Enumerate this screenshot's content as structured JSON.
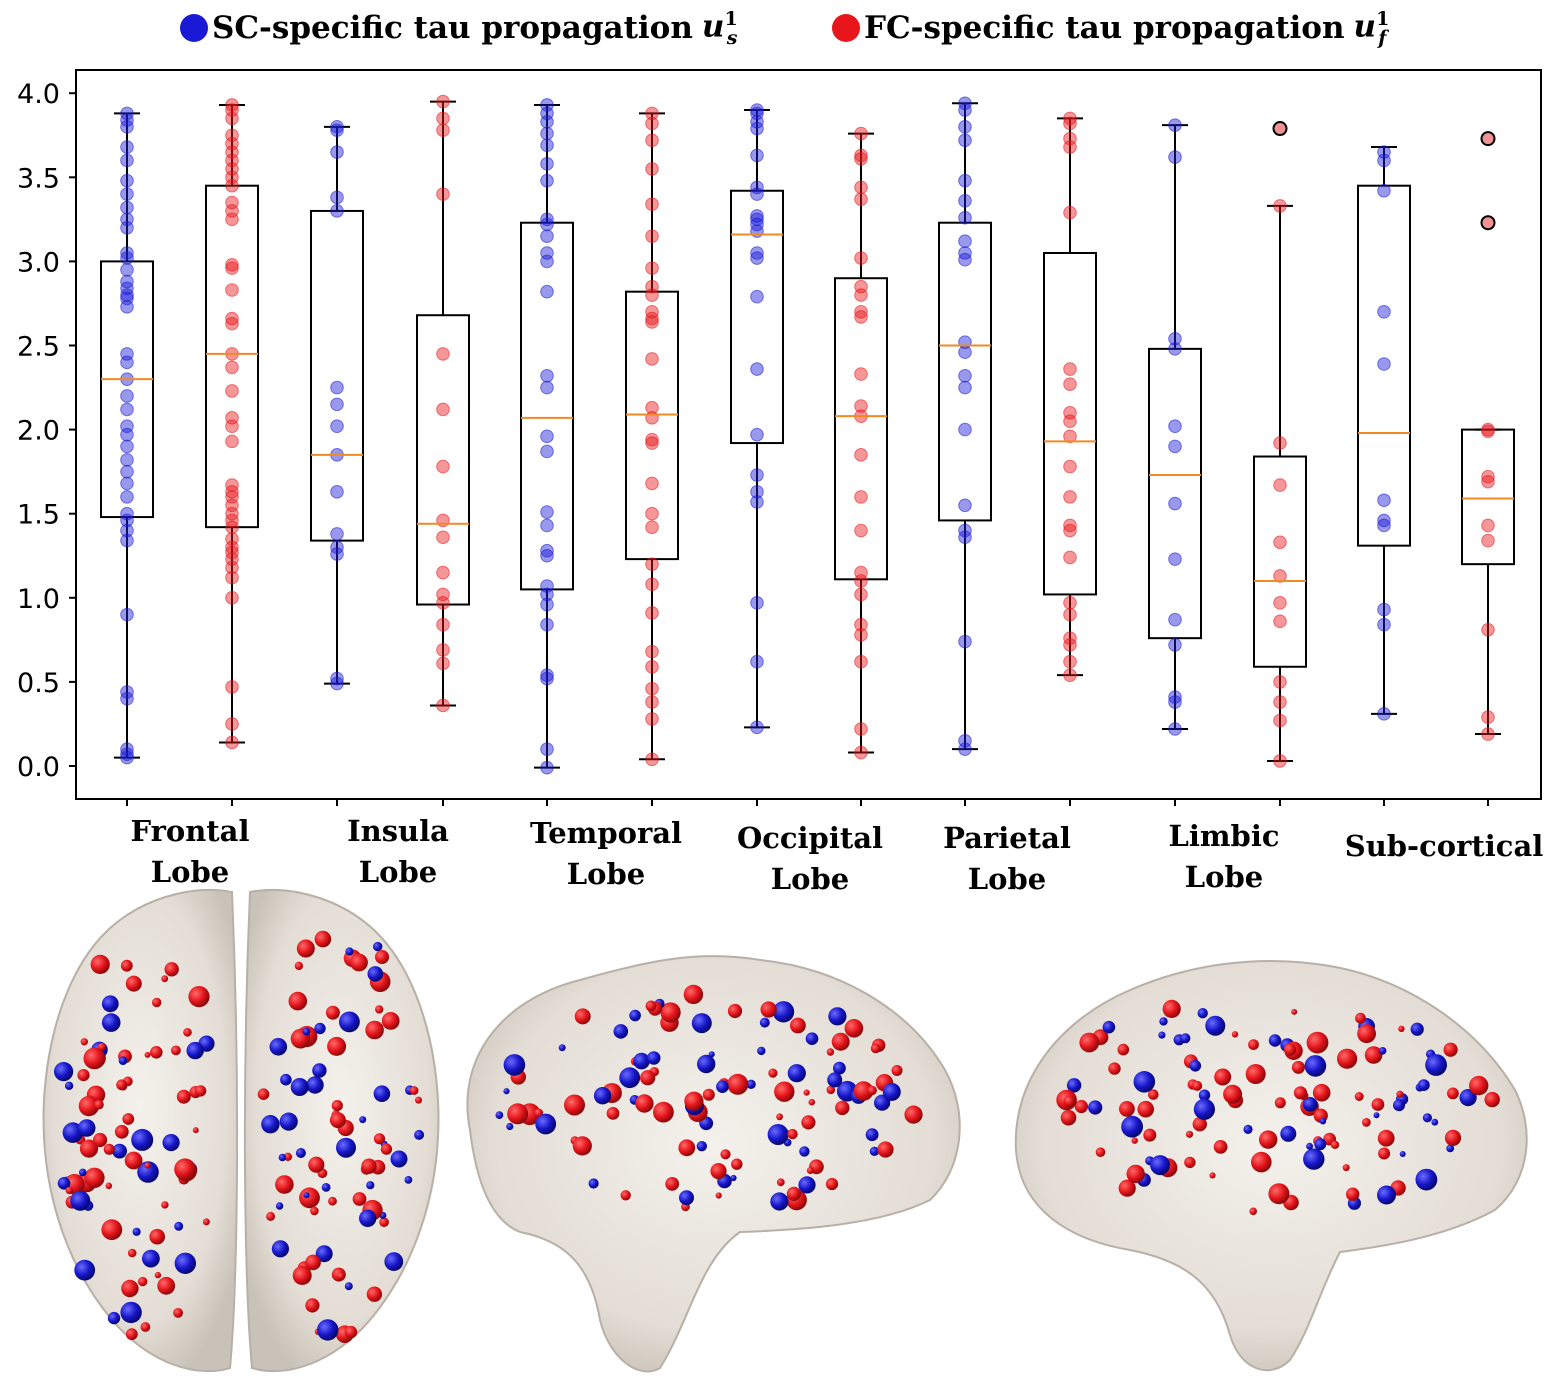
{
  "legend": {
    "sc_label": "SC-specific tau propagation",
    "sc_symbol": "u",
    "sc_sup": "1",
    "sc_sub": "s",
    "fc_label": "FC-specific tau propagation",
    "fc_symbol": "u",
    "fc_sup": "1",
    "fc_sub": "f"
  },
  "colors": {
    "sc": "#1a1ad6",
    "fc": "#e8161b",
    "median": "#f08a24",
    "outlier_fill": "#f19393"
  },
  "chart_data": {
    "type": "box",
    "ylim": [
      -0.18,
      4.1
    ],
    "yticks": [
      "4.0",
      "3.5",
      "3.0",
      "2.5",
      "2.0",
      "1.5",
      "1.0",
      "0.5",
      "0.0"
    ],
    "categories": [
      "Frontal\nLobe",
      "Insula\nLobe",
      "Temporal\nLobe",
      "Occipital\nLobe",
      "Parietal\nLobe",
      "Limbic\nLobe",
      "Sub-cortical"
    ],
    "boxes": [
      {
        "lobe": "Frontal Lobe",
        "series": "SC",
        "whislo": 0.05,
        "q1": 1.48,
        "med": 2.3,
        "q3": 3.0,
        "whishi": 3.88,
        "fliers": [],
        "points": [
          3.88,
          3.84,
          3.8,
          3.68,
          3.6,
          3.48,
          3.4,
          3.32,
          3.25,
          3.2,
          3.05,
          3.02,
          2.95,
          2.88,
          2.84,
          2.8,
          2.78,
          2.73,
          2.45,
          2.4,
          2.3,
          2.2,
          2.12,
          2.02,
          1.97,
          1.9,
          1.82,
          1.75,
          1.68,
          1.6,
          1.5,
          1.46,
          1.4,
          1.34,
          0.9,
          0.44,
          0.4,
          0.1,
          0.07,
          0.05
        ]
      },
      {
        "lobe": "Frontal Lobe",
        "series": "FC",
        "whislo": 0.14,
        "q1": 1.42,
        "med": 2.45,
        "q3": 3.45,
        "whishi": 3.93,
        "fliers": [],
        "points": [
          3.93,
          3.9,
          3.85,
          3.75,
          3.7,
          3.65,
          3.6,
          3.55,
          3.5,
          3.45,
          3.35,
          3.3,
          3.25,
          2.98,
          2.96,
          2.83,
          2.66,
          2.63,
          2.45,
          2.37,
          2.23,
          2.07,
          2.02,
          1.93,
          1.67,
          1.63,
          1.6,
          1.55,
          1.5,
          1.46,
          1.42,
          1.35,
          1.3,
          1.27,
          1.23,
          1.18,
          1.12,
          1.0,
          0.47,
          0.25,
          0.14
        ]
      },
      {
        "lobe": "Insula Lobe",
        "series": "SC",
        "whislo": 0.49,
        "q1": 1.34,
        "med": 1.85,
        "q3": 3.3,
        "whishi": 3.8,
        "fliers": [],
        "points": [
          3.8,
          3.78,
          3.65,
          3.38,
          3.3,
          2.25,
          2.15,
          2.02,
          1.85,
          1.63,
          1.38,
          1.3,
          1.26,
          0.52,
          0.49
        ]
      },
      {
        "lobe": "Insula Lobe",
        "series": "FC",
        "whislo": 0.36,
        "q1": 0.96,
        "med": 1.44,
        "q3": 2.68,
        "whishi": 3.95,
        "fliers": [],
        "points": [
          3.95,
          3.85,
          3.78,
          3.4,
          2.45,
          2.12,
          1.78,
          1.46,
          1.36,
          1.15,
          1.02,
          0.97,
          0.84,
          0.69,
          0.61,
          0.36
        ]
      },
      {
        "lobe": "Temporal Lobe",
        "series": "SC",
        "whislo": -0.01,
        "q1": 1.05,
        "med": 2.07,
        "q3": 3.23,
        "whishi": 3.93,
        "fliers": [],
        "points": [
          3.93,
          3.88,
          3.83,
          3.76,
          3.69,
          3.58,
          3.48,
          3.25,
          3.22,
          3.15,
          3.05,
          3.0,
          2.82,
          2.32,
          2.25,
          1.96,
          1.87,
          1.51,
          1.43,
          1.28,
          1.25,
          1.07,
          1.02,
          0.96,
          0.84,
          0.54,
          0.52,
          0.1,
          -0.01
        ]
      },
      {
        "lobe": "Temporal Lobe",
        "series": "FC",
        "whislo": 0.04,
        "q1": 1.23,
        "med": 2.09,
        "q3": 2.82,
        "whishi": 3.88,
        "fliers": [],
        "points": [
          3.88,
          3.82,
          3.72,
          3.55,
          3.34,
          3.15,
          2.96,
          2.85,
          2.8,
          2.7,
          2.66,
          2.64,
          2.42,
          2.13,
          2.07,
          1.94,
          1.92,
          1.68,
          1.5,
          1.42,
          1.2,
          1.08,
          0.91,
          0.68,
          0.59,
          0.46,
          0.38,
          0.28,
          0.04
        ]
      },
      {
        "lobe": "Occipital Lobe",
        "series": "SC",
        "whislo": 0.23,
        "q1": 1.92,
        "med": 3.16,
        "q3": 3.42,
        "whishi": 3.9,
        "fliers": [],
        "points": [
          3.9,
          3.88,
          3.83,
          3.79,
          3.63,
          3.44,
          3.4,
          3.27,
          3.25,
          3.22,
          3.18,
          3.05,
          3.02,
          2.79,
          2.36,
          1.97,
          1.73,
          1.63,
          1.57,
          0.97,
          0.62,
          0.23
        ]
      },
      {
        "lobe": "Occipital Lobe",
        "series": "FC",
        "whislo": 0.08,
        "q1": 1.11,
        "med": 2.08,
        "q3": 2.9,
        "whishi": 3.76,
        "fliers": [],
        "points": [
          3.76,
          3.63,
          3.61,
          3.44,
          3.37,
          3.02,
          2.85,
          2.8,
          2.7,
          2.67,
          2.33,
          2.14,
          2.08,
          1.85,
          1.6,
          1.4,
          1.15,
          1.1,
          1.02,
          0.84,
          0.78,
          0.62,
          0.22,
          0.08
        ]
      },
      {
        "lobe": "Parietal Lobe",
        "series": "SC",
        "whislo": 0.1,
        "q1": 1.46,
        "med": 2.5,
        "q3": 3.23,
        "whishi": 3.94,
        "fliers": [],
        "points": [
          3.94,
          3.9,
          3.8,
          3.72,
          3.48,
          3.36,
          3.26,
          3.12,
          3.05,
          3.01,
          2.52,
          2.46,
          2.32,
          2.25,
          2.0,
          1.55,
          1.4,
          1.36,
          0.74,
          0.15,
          0.1
        ]
      },
      {
        "lobe": "Parietal Lobe",
        "series": "FC",
        "whislo": 0.54,
        "q1": 1.02,
        "med": 1.93,
        "q3": 3.05,
        "whishi": 3.85,
        "fliers": [],
        "points": [
          3.85,
          3.82,
          3.73,
          3.68,
          3.29,
          2.36,
          2.27,
          2.1,
          2.05,
          1.96,
          1.78,
          1.6,
          1.43,
          1.4,
          1.24,
          0.97,
          0.9,
          0.76,
          0.72,
          0.62,
          0.54
        ]
      },
      {
        "lobe": "Limbic Lobe",
        "series": "SC",
        "whislo": 0.22,
        "q1": 0.76,
        "med": 1.73,
        "q3": 2.48,
        "whishi": 3.81,
        "fliers": [],
        "points": [
          3.81,
          3.62,
          2.54,
          2.48,
          2.02,
          1.9,
          1.56,
          1.23,
          0.87,
          0.72,
          0.41,
          0.38,
          0.22
        ]
      },
      {
        "lobe": "Limbic Lobe",
        "series": "FC",
        "whislo": 0.03,
        "q1": 0.59,
        "med": 1.1,
        "q3": 1.84,
        "whishi": 3.33,
        "fliers": [
          3.79
        ],
        "points": [
          3.33,
          1.92,
          1.67,
          1.33,
          1.13,
          0.97,
          0.86,
          0.5,
          0.38,
          0.27,
          0.03
        ]
      },
      {
        "lobe": "Sub-cortical",
        "series": "SC",
        "whislo": 0.31,
        "q1": 1.31,
        "med": 1.98,
        "q3": 3.45,
        "whishi": 3.68,
        "fliers": [],
        "points": [
          3.65,
          3.6,
          3.42,
          2.7,
          2.39,
          1.58,
          1.46,
          1.43,
          0.93,
          0.84,
          0.31
        ]
      },
      {
        "lobe": "Sub-cortical",
        "series": "FC",
        "whislo": 0.19,
        "q1": 1.2,
        "med": 1.59,
        "q3": 2.0,
        "whishi": 2.0,
        "fliers": [
          3.73,
          3.23
        ],
        "points": [
          2.0,
          1.99,
          1.72,
          1.69,
          1.43,
          1.34,
          0.81,
          0.29,
          0.19
        ]
      }
    ]
  }
}
